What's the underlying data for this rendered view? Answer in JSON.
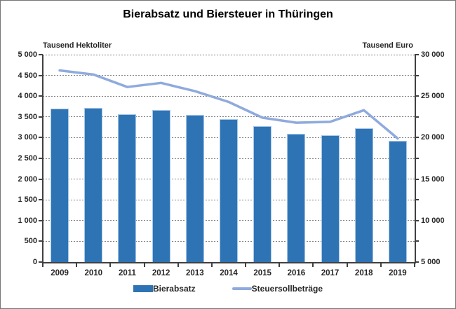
{
  "chart_data": {
    "type": "bar+line",
    "title": "Bierabsatz und Biersteuer in Thüringen",
    "categories": [
      "2009",
      "2010",
      "2011",
      "2012",
      "2013",
      "2014",
      "2015",
      "2016",
      "2017",
      "2018",
      "2019"
    ],
    "series": [
      {
        "name": "Bierabsatz",
        "type": "bar",
        "axis": "left",
        "unit": "Tausend Hektoliter",
        "values": [
          3700,
          3720,
          3570,
          3660,
          3550,
          3450,
          3270,
          3090,
          3050,
          3230,
          2920
        ]
      },
      {
        "name": "Steuersollbeträge",
        "type": "line",
        "axis": "right",
        "unit": "Tausend Euro",
        "values": [
          28100,
          27600,
          26100,
          26600,
          25600,
          24300,
          22400,
          21800,
          21900,
          23300,
          19900
        ]
      }
    ],
    "left_axis": {
      "unit_label": "Tausend Hektoliter",
      "min": 0,
      "max": 5000,
      "tick_step": 500,
      "tick_labels": [
        "0",
        "500",
        "1 000",
        "1 500",
        "2 000",
        "2 500",
        "3 000",
        "3 500",
        "4 000",
        "4 500",
        "5 000"
      ]
    },
    "right_axis": {
      "unit_label": "Tausend Euro",
      "min": 5000,
      "max": 30000,
      "tick_step": 5000,
      "tick_labels": [
        "5 000",
        "10 000",
        "15 000",
        "20 000",
        "25 000",
        "30 000"
      ]
    },
    "grid": "dashed-horizontal",
    "legend_position": "bottom"
  },
  "colors": {
    "bar": "#2E74B5",
    "bar_edge": "#A9C7E7",
    "line": "#8FAADC",
    "gridline": "#7F7F7F",
    "axis": "#404040",
    "text": "#262626"
  }
}
